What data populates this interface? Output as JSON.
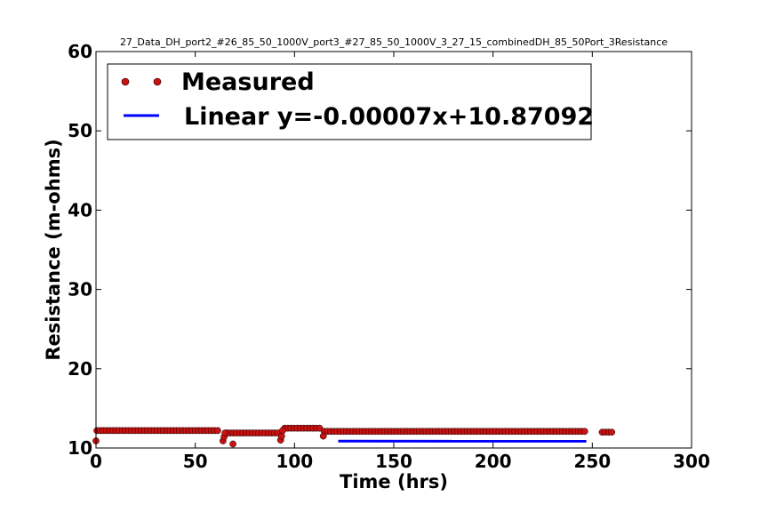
{
  "chart_data": {
    "type": "scatter",
    "title": "27_Data_DH_port2_#26_85_50_1000V_port3_#27_85_50_1000V_3_27_15_combinedDH_85_50Port_3Resistance",
    "xlabel": "Time (hrs)",
    "ylabel": "Resistance (m-ohms)",
    "xlim": [
      0,
      300
    ],
    "ylim": [
      10,
      60
    ],
    "xticks": [
      "0",
      "50",
      "100",
      "150",
      "200",
      "250",
      "300"
    ],
    "yticks": [
      "10",
      "20",
      "30",
      "40",
      "50",
      "60"
    ],
    "grid": false,
    "legend_position": "top-left",
    "series": [
      {
        "name": "Measured",
        "kind": "scatter",
        "color": "#cc1111",
        "segments": [
          {
            "x_start": 0.5,
            "x_end": 62,
            "y": 12.2
          },
          {
            "x_start": 66,
            "x_end": 92,
            "y": 11.9
          },
          {
            "x_start": 95,
            "x_end": 114,
            "y": 12.5
          },
          {
            "x_start": 115,
            "x_end": 247,
            "y": 12.1
          },
          {
            "x_start": 255,
            "x_end": 261,
            "y": 12.0
          }
        ],
        "points": [
          {
            "x": 0,
            "y": 10.9
          },
          {
            "x": 64,
            "y": 10.9
          },
          {
            "x": 64.5,
            "y": 11.4
          },
          {
            "x": 65,
            "y": 11.9
          },
          {
            "x": 69,
            "y": 10.5
          },
          {
            "x": 93,
            "y": 11.0
          },
          {
            "x": 93.5,
            "y": 11.5
          },
          {
            "x": 94,
            "y": 12.2
          },
          {
            "x": 114.5,
            "y": 11.5
          }
        ]
      },
      {
        "name": "Linear y=-0.00007x+10.87092",
        "kind": "line",
        "color": "#0000ff",
        "slope": -7e-05,
        "intercept": 10.87092,
        "x": [
          122,
          247
        ]
      }
    ]
  }
}
